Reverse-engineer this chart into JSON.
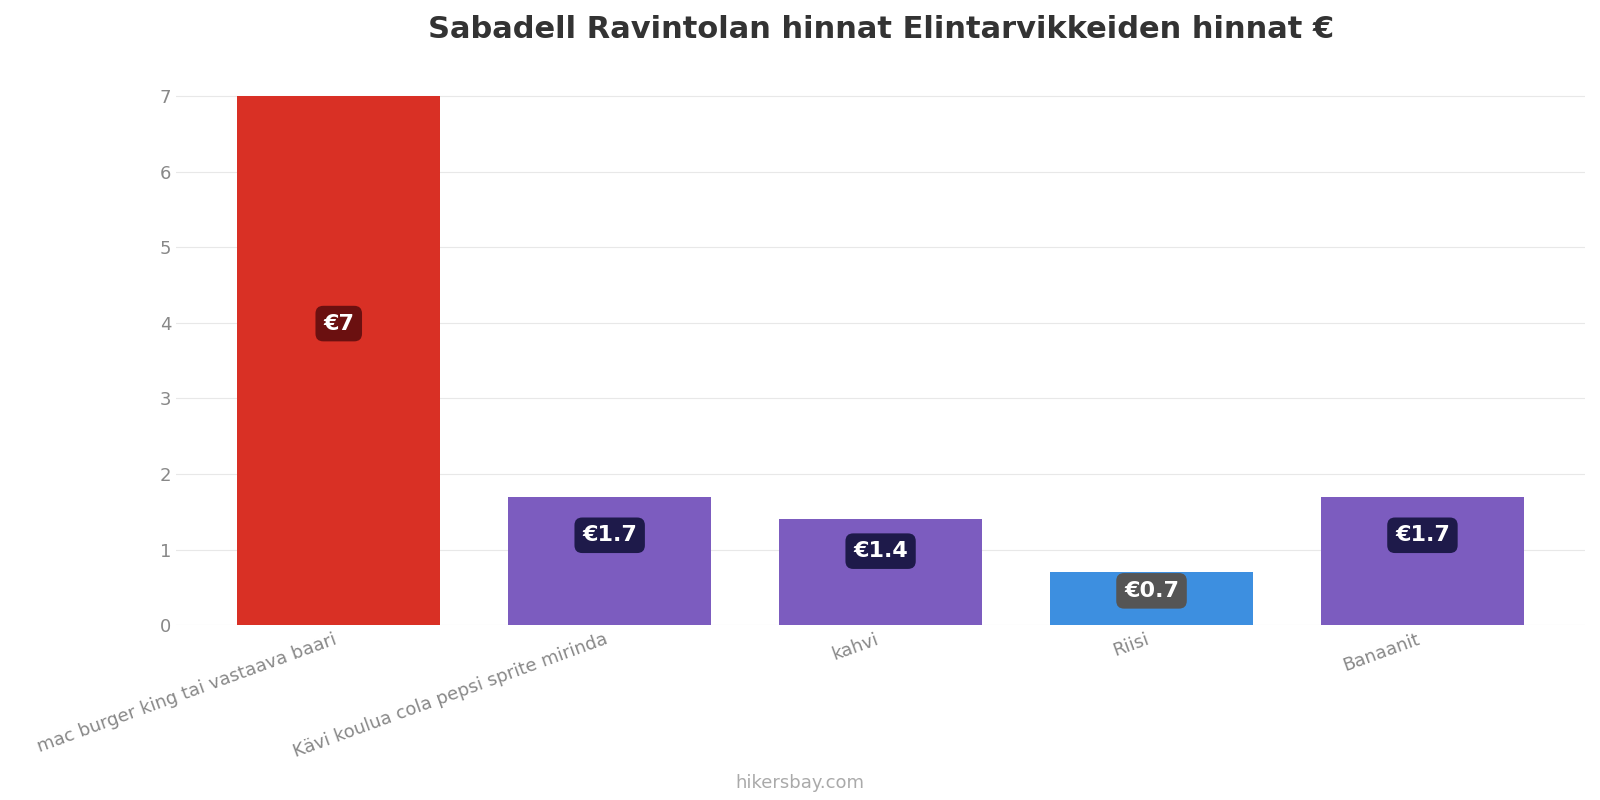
{
  "title": "Sabadell Ravintolan hinnat Elintarvikkeiden hinnat €",
  "categories": [
    "mac burger king tai vastaava baari",
    "Kävi koulua cola pepsi sprite mirinda",
    "kahvi",
    "Riisi",
    "Banaanit"
  ],
  "values": [
    7.0,
    1.7,
    1.4,
    0.7,
    1.7
  ],
  "bar_colors": [
    "#d93025",
    "#7c5cbf",
    "#7c5cbf",
    "#3d8fe0",
    "#7c5cbf"
  ],
  "label_bg_colors": [
    "#6b1010",
    "#1e1a4a",
    "#1e1a4a",
    "#555555",
    "#1e1a4a"
  ],
  "labels": [
    "€7",
    "€1.7",
    "€1.4",
    "€0.7",
    "€1.7"
  ],
  "ylabel_ticks": [
    0,
    1,
    2,
    3,
    4,
    5,
    6,
    7
  ],
  "ylim": [
    0,
    7.4
  ],
  "watermark": "hikersbay.com",
  "background_color": "#ffffff",
  "title_fontsize": 22,
  "tick_fontsize": 13,
  "label_fontsize": 16,
  "watermark_fontsize": 13,
  "bar_width": 0.75
}
